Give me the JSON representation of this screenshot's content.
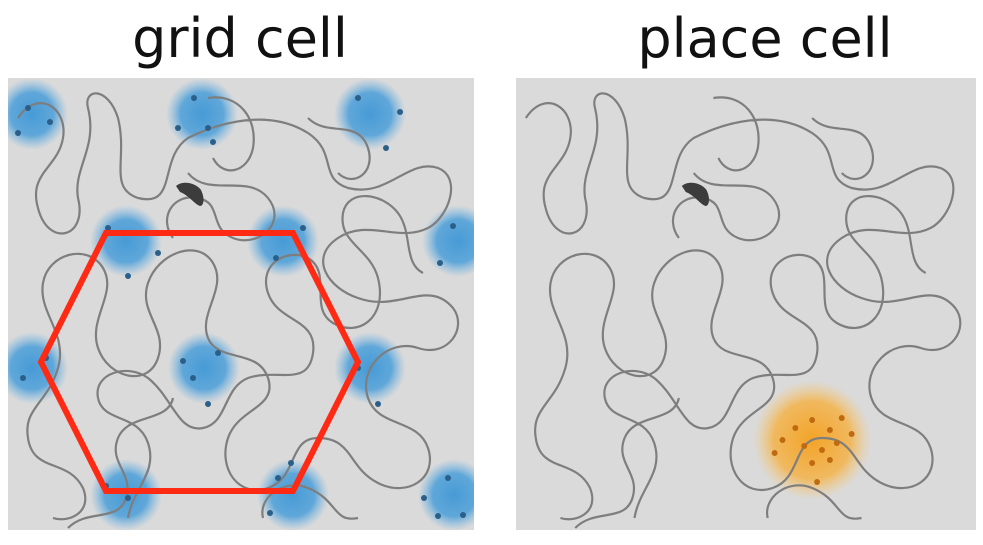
{
  "panels": {
    "grid": {
      "title": "grid cell",
      "field_color": "#3f97d6",
      "outline_color": "#ff2a14",
      "outline_shape": "hexagon"
    },
    "place": {
      "title": "place cell",
      "field_color": "#f4a01c"
    }
  },
  "colors": {
    "trajectory": "#7e7e7e",
    "animal": "#3c3c3c",
    "background": "#dadada"
  }
}
